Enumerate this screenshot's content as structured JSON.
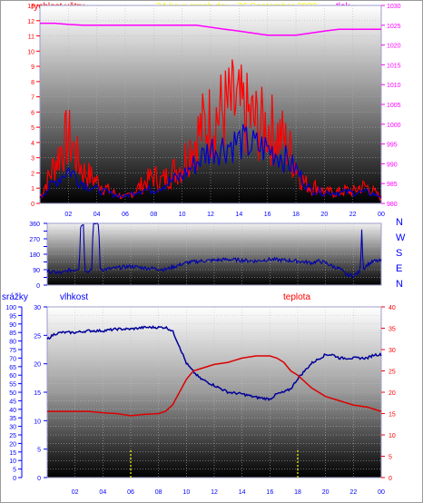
{
  "header": {
    "wind_label": "rychlost větru",
    "title": "24 hour graph day : 26 September 2023",
    "pressure_label": "tlak"
  },
  "direction_letters": [
    "N",
    "W",
    "S",
    "E",
    "N"
  ],
  "bottom_labels": {
    "rain": "srážky",
    "humidity": "vlhkost",
    "temperature": "teplota"
  },
  "colors": {
    "wind": "#ff0000",
    "wind_avg": "#0000cc",
    "pressure": "#ff00ff",
    "humidity": "#000099",
    "temperature": "#dd0000",
    "rain": "#ffff00",
    "axis_text_blue": "#0000ff",
    "axis_text_red": "#ff0000"
  },
  "chart_data": [
    {
      "type": "line",
      "x_tick_labels": [
        "02",
        "04",
        "06",
        "08",
        "10",
        "12",
        "14",
        "16",
        "18",
        "20",
        "22",
        "00"
      ],
      "x_hours": [
        0,
        24
      ],
      "left_axis": {
        "ylim": [
          0,
          13
        ],
        "ticks": [
          0,
          1,
          2,
          3,
          4,
          5,
          6,
          7,
          8,
          9,
          10,
          11,
          12,
          13
        ]
      },
      "right_axis": {
        "ylim": [
          980,
          1030
        ],
        "ticks": [
          980,
          985,
          990,
          995,
          1000,
          1005,
          1010,
          1015,
          1020,
          1025,
          1030
        ]
      },
      "series": [
        {
          "name": "rychlost větru",
          "axis": "left",
          "x": [
            0,
            0.5,
            1,
            1.5,
            2,
            2.5,
            3,
            3.5,
            4,
            4.5,
            5,
            5.5,
            6,
            6.5,
            7,
            7.5,
            8,
            8.5,
            9,
            9.5,
            10,
            10.5,
            11,
            11.5,
            12,
            12.5,
            13,
            13.5,
            14,
            14.5,
            15,
            15.5,
            16,
            16.5,
            17,
            17.5,
            18,
            18.5,
            19,
            19.5,
            20,
            20.5,
            21,
            21.5,
            22,
            22.5,
            23,
            23.5,
            24
          ],
          "values": [
            0.5,
            2,
            3.5,
            5,
            6,
            4.5,
            3,
            2.5,
            2,
            1.5,
            1,
            0.8,
            0.5,
            1,
            1.5,
            2,
            2.5,
            2,
            2.5,
            3,
            3.5,
            5,
            6,
            7,
            7.5,
            8,
            8.5,
            8.8,
            8.5,
            8,
            7.5,
            7,
            7,
            6.5,
            6,
            5,
            3.5,
            2,
            1.5,
            1.5,
            1,
            1,
            1,
            1.2,
            1,
            1.5,
            1.5,
            1,
            0.5
          ]
        },
        {
          "name": "",
          "axis": "left",
          "x": [
            0,
            1,
            2,
            3,
            4,
            5,
            6,
            7,
            8,
            9,
            10,
            11,
            12,
            13,
            14,
            15,
            16,
            17,
            18,
            19,
            20,
            21,
            22,
            23,
            24
          ],
          "values": [
            0.5,
            1.5,
            2.5,
            1.5,
            1,
            0.7,
            0.5,
            1,
            1,
            1.5,
            2,
            3,
            4,
            4.2,
            4.5,
            4.2,
            4,
            3.5,
            2.5,
            1,
            0.8,
            0.8,
            0.8,
            0.8,
            0.5
          ]
        },
        {
          "name": "tlak",
          "axis": "right",
          "x": [
            0,
            1,
            2,
            3,
            4,
            5,
            6,
            7,
            8,
            9,
            10,
            11,
            12,
            13,
            14,
            15,
            16,
            17,
            18,
            19,
            20,
            21,
            22,
            23,
            24
          ],
          "values": [
            1025.5,
            1025.5,
            1025.2,
            1025,
            1025,
            1025,
            1025,
            1025,
            1025,
            1025,
            1025,
            1025,
            1024.5,
            1024,
            1023.5,
            1023,
            1022.5,
            1022.5,
            1022.5,
            1023,
            1023.5,
            1024,
            1024,
            1024,
            1024
          ]
        }
      ]
    },
    {
      "type": "line",
      "x_tick_labels": [],
      "ylim": [
        0,
        360
      ],
      "y_ticks": [
        0,
        45,
        90,
        135,
        180,
        225,
        270,
        315,
        360
      ],
      "y_tick_labels": [
        "0",
        "",
        "90",
        "",
        "180",
        "",
        "270",
        "",
        "360"
      ],
      "series": [
        {
          "name": "",
          "x": [
            0,
            0.5,
            1,
            1.5,
            2,
            2.3,
            2.4,
            2.6,
            2.7,
            3,
            3.2,
            3.3,
            3.5,
            3.7,
            3.8,
            4,
            4.5,
            5,
            6,
            7,
            8,
            8.5,
            9,
            10,
            11,
            12,
            13,
            14,
            15,
            16,
            17,
            18,
            18.5,
            19,
            19.5,
            20,
            20.5,
            21,
            21.5,
            22,
            22.5,
            22.6,
            22.7,
            23,
            23.5,
            24
          ],
          "values": [
            80,
            75,
            70,
            85,
            90,
            100,
            340,
            360,
            90,
            80,
            100,
            350,
            360,
            360,
            100,
            90,
            95,
            100,
            110,
            100,
            95,
            90,
            105,
            130,
            140,
            145,
            150,
            145,
            140,
            150,
            145,
            140,
            135,
            130,
            140,
            130,
            110,
            95,
            60,
            55,
            80,
            330,
            90,
            120,
            140,
            140
          ]
        }
      ]
    },
    {
      "type": "line",
      "x_tick_labels": [
        "02",
        "04",
        "06",
        "08",
        "10",
        "12",
        "14",
        "16",
        "18",
        "20",
        "22",
        "00"
      ],
      "rain_axis": {
        "ylim": [
          0,
          100
        ],
        "ticks": [
          0,
          5,
          10,
          15,
          20,
          25,
          30,
          35,
          40,
          45,
          50,
          55,
          60,
          65,
          70,
          75,
          80,
          85,
          90,
          95,
          100
        ]
      },
      "humidity_axis": {
        "ylim": [
          0,
          30
        ],
        "ticks": [
          0,
          5,
          10,
          15,
          20,
          25,
          30
        ]
      },
      "temperature_axis": {
        "ylim": [
          0,
          40
        ],
        "ticks": [
          0,
          5,
          10,
          15,
          20,
          25,
          30,
          35,
          40
        ]
      },
      "series": [
        {
          "name": "vlhkost",
          "x": [
            0,
            0.5,
            1,
            2,
            3,
            4,
            5,
            6,
            7,
            8,
            8.5,
            9,
            9.5,
            10,
            10.5,
            11,
            12,
            13,
            14,
            15,
            16,
            16.5,
            17,
            17.5,
            18,
            19,
            20,
            20.5,
            21,
            22,
            23,
            23.5,
            24
          ],
          "values": [
            81,
            84,
            85,
            85,
            86,
            86,
            87,
            87,
            88,
            88,
            88,
            86,
            77,
            67,
            62,
            58,
            54,
            50,
            49,
            47,
            46,
            49,
            50,
            52,
            58,
            67,
            72,
            72,
            70,
            70,
            70,
            72,
            72
          ]
        },
        {
          "name": "teplota",
          "x": [
            0,
            1,
            2,
            3,
            4,
            5,
            6,
            7,
            8,
            8.5,
            9,
            9.5,
            10,
            10.5,
            11,
            12,
            13,
            14,
            15,
            16,
            16.5,
            17,
            17.5,
            18,
            19,
            20,
            21,
            22,
            23,
            24
          ],
          "values": [
            15.5,
            15.5,
            15.5,
            15.5,
            15.2,
            15,
            14.5,
            14.8,
            15,
            15.5,
            17,
            20,
            23,
            25,
            25.5,
            26.5,
            27,
            28,
            28.5,
            28.5,
            28,
            27,
            25,
            24,
            21,
            19,
            18,
            17,
            16.5,
            15.5
          ]
        },
        {
          "name": "srážky",
          "x": [
            6,
            18
          ],
          "values": [
            4,
            4
          ]
        }
      ]
    }
  ]
}
